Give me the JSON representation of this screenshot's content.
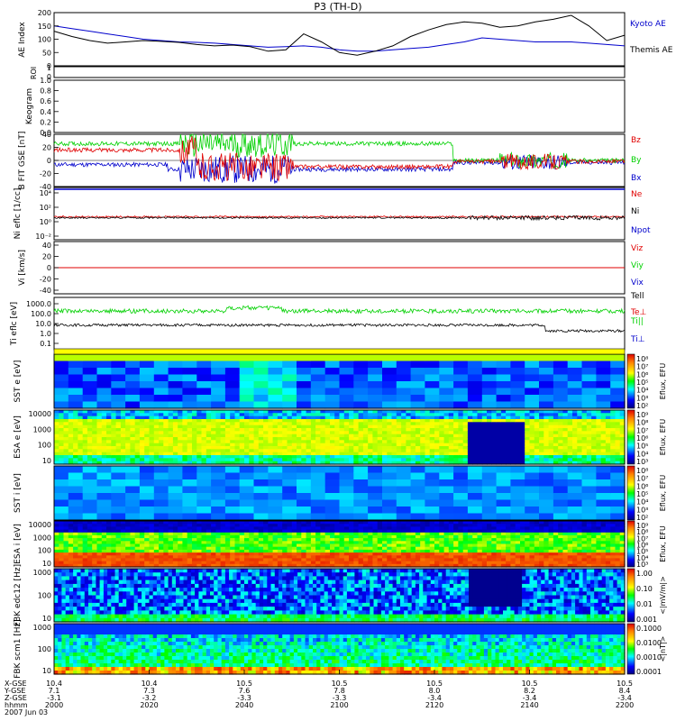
{
  "title": "P3 (TH-D)",
  "colors": {
    "black": "#000000",
    "blue": "#0000cc",
    "red": "#e00000",
    "green": "#00d000",
    "yellow": "#ffff00"
  },
  "chart_data": [
    {
      "type": "line",
      "panel": "ae",
      "ylabel": "AE Index",
      "ylim": [
        0,
        200
      ],
      "yticks": [
        "200",
        "150",
        "100",
        "50",
        "0"
      ],
      "x": [
        0,
        5,
        10,
        15,
        20,
        25,
        30,
        35,
        40,
        45,
        50,
        55,
        60,
        65,
        70,
        75,
        80,
        85,
        90,
        95,
        100,
        105,
        110,
        115,
        120,
        125,
        130,
        135,
        140,
        145,
        150,
        155,
        160
      ],
      "series": [
        {
          "name": "Kyoto AE",
          "color": "#0000cc",
          "values": [
            150,
            140,
            130,
            120,
            110,
            100,
            95,
            90,
            88,
            85,
            80,
            75,
            70,
            72,
            75,
            70,
            60,
            55,
            55,
            60,
            65,
            70,
            80,
            90,
            105,
            100,
            95,
            90,
            90,
            90,
            85,
            80,
            75
          ]
        },
        {
          "name": "Themis AE",
          "color": "#000000",
          "values": [
            130,
            110,
            95,
            85,
            90,
            95,
            92,
            88,
            80,
            75,
            78,
            72,
            55,
            60,
            120,
            90,
            50,
            40,
            55,
            75,
            110,
            135,
            155,
            165,
            160,
            145,
            150,
            165,
            175,
            190,
            150,
            95,
            115
          ]
        }
      ]
    },
    {
      "type": "line",
      "panel": "roi",
      "ylabel": "ROI",
      "yticks": [
        "1",
        "0"
      ]
    },
    {
      "type": "line",
      "panel": "keogram",
      "ylabel": "Keogram",
      "ylim": [
        0,
        1
      ],
      "yticks": [
        "1.0",
        "0.8",
        "0.6",
        "0.4",
        "0.2",
        "0.0"
      ]
    },
    {
      "type": "line",
      "panel": "bfgm",
      "ylabel": "B FIT GSE [nT]",
      "ylim": [
        -40,
        40
      ],
      "yticks": [
        "40",
        "20",
        "0",
        "-20",
        "-40"
      ],
      "series": [
        {
          "name": "Bz",
          "color": "#e00000"
        },
        {
          "name": "By",
          "color": "#00d000"
        },
        {
          "name": "Bx",
          "color": "#0000cc"
        }
      ]
    },
    {
      "type": "line",
      "panel": "density",
      "ylabel": "Ni eflc [1/cc]",
      "yticks": [
        "10⁴",
        "10²",
        "10⁰",
        "10⁻²"
      ],
      "series": [
        {
          "name": "Ne",
          "color": "#e00000"
        },
        {
          "name": "Ni",
          "color": "#000000"
        },
        {
          "name": "Npot",
          "color": "#0000cc"
        }
      ]
    },
    {
      "type": "line",
      "panel": "velocity",
      "ylabel": "Vi [km/s]",
      "ylim": [
        -50,
        50
      ],
      "yticks": [
        "40",
        "20",
        "0",
        "-20",
        "-40"
      ],
      "series": [
        {
          "name": "Viz",
          "color": "#e00000"
        },
        {
          "name": "Viy",
          "color": "#00d000"
        },
        {
          "name": "Vix",
          "color": "#0000cc"
        }
      ]
    },
    {
      "type": "line",
      "panel": "temperature",
      "ylabel": "Ti eflc [eV]",
      "yticks": [
        "1000.0",
        "100.0",
        "10.0",
        "1.0",
        "0.1"
      ],
      "series": [
        {
          "name": "Tell",
          "color": "#000000"
        },
        {
          "name": "Te⊥",
          "color": "#e00000"
        },
        {
          "name": "Ti||",
          "color": "#00d000"
        },
        {
          "name": "Ti⊥",
          "color": "#0000cc"
        }
      ]
    },
    {
      "type": "heatmap",
      "panel": "sst_e",
      "ylabel": "SST e [eV]",
      "cbar_label": "Eflux, EFU",
      "cbar_ticks": [
        "10⁸",
        "10⁷",
        "10⁶",
        "10⁵",
        "10⁴",
        "10³",
        "10²"
      ]
    },
    {
      "type": "heatmap",
      "panel": "esa_e",
      "ylabel": "ESA e [eV]",
      "yticks": [
        "10000",
        "1000",
        "100",
        "10"
      ],
      "cbar_label": "Eflux, EFU",
      "cbar_ticks": [
        "10⁹",
        "10⁸",
        "10⁷",
        "10⁶",
        "10⁵",
        "10⁴",
        "10³"
      ]
    },
    {
      "type": "heatmap",
      "panel": "sst_i",
      "ylabel": "SST i [eV]",
      "cbar_label": "Eflux, EFU",
      "cbar_ticks": [
        "10⁸",
        "10⁷",
        "10⁶",
        "10⁵",
        "10⁴",
        "10³",
        "10²"
      ]
    },
    {
      "type": "heatmap",
      "panel": "esa_i",
      "ylabel": "ESA i [eV]",
      "yticks": [
        "10000",
        "1000",
        "100",
        "10"
      ],
      "cbar_label": "Eflux, EFU",
      "cbar_ticks": [
        "10⁹",
        "10⁸",
        "10⁷",
        "10⁶",
        "10⁵",
        "10⁴",
        "10³"
      ]
    },
    {
      "type": "heatmap",
      "panel": "fbk_e",
      "ylabel": "FBK edc12 [Hz]",
      "yticks": [
        "1000",
        "100",
        "10"
      ],
      "cbar_label": "<|mV/m|>",
      "cbar_ticks": [
        "1.00",
        "0.10",
        "0.01",
        "0.001"
      ]
    },
    {
      "type": "heatmap",
      "panel": "fbk_b",
      "ylabel": "FBK scm1 [Hz]",
      "yticks": [
        "1000",
        "100",
        "10"
      ],
      "cbar_label": "<|nT|>",
      "cbar_ticks": [
        "0.1000",
        "0.0100",
        "0.0010",
        "0.0001"
      ]
    }
  ],
  "xaxis": {
    "row_labels": [
      "X-GSE",
      "Y-GSE",
      "Z-GSE",
      "hhmm",
      "2007 Jun 03"
    ],
    "ticks": [
      {
        "x": "10.4",
        "y": "7.1",
        "z": "-3.1",
        "t": "2000"
      },
      {
        "x": "10.4",
        "y": "7.3",
        "z": "-3.2",
        "t": "2020"
      },
      {
        "x": "10.5",
        "y": "7.6",
        "z": "-3.3",
        "t": "2040"
      },
      {
        "x": "10.5",
        "y": "7.8",
        "z": "-3.3",
        "t": "2100"
      },
      {
        "x": "10.5",
        "y": "8.0",
        "z": "-3.4",
        "t": "2120"
      },
      {
        "x": "10.5",
        "y": "8.2",
        "z": "-3.4",
        "t": "2140"
      },
      {
        "x": "10.5",
        "y": "8.4",
        "z": "-3.4",
        "t": "2200"
      }
    ]
  }
}
